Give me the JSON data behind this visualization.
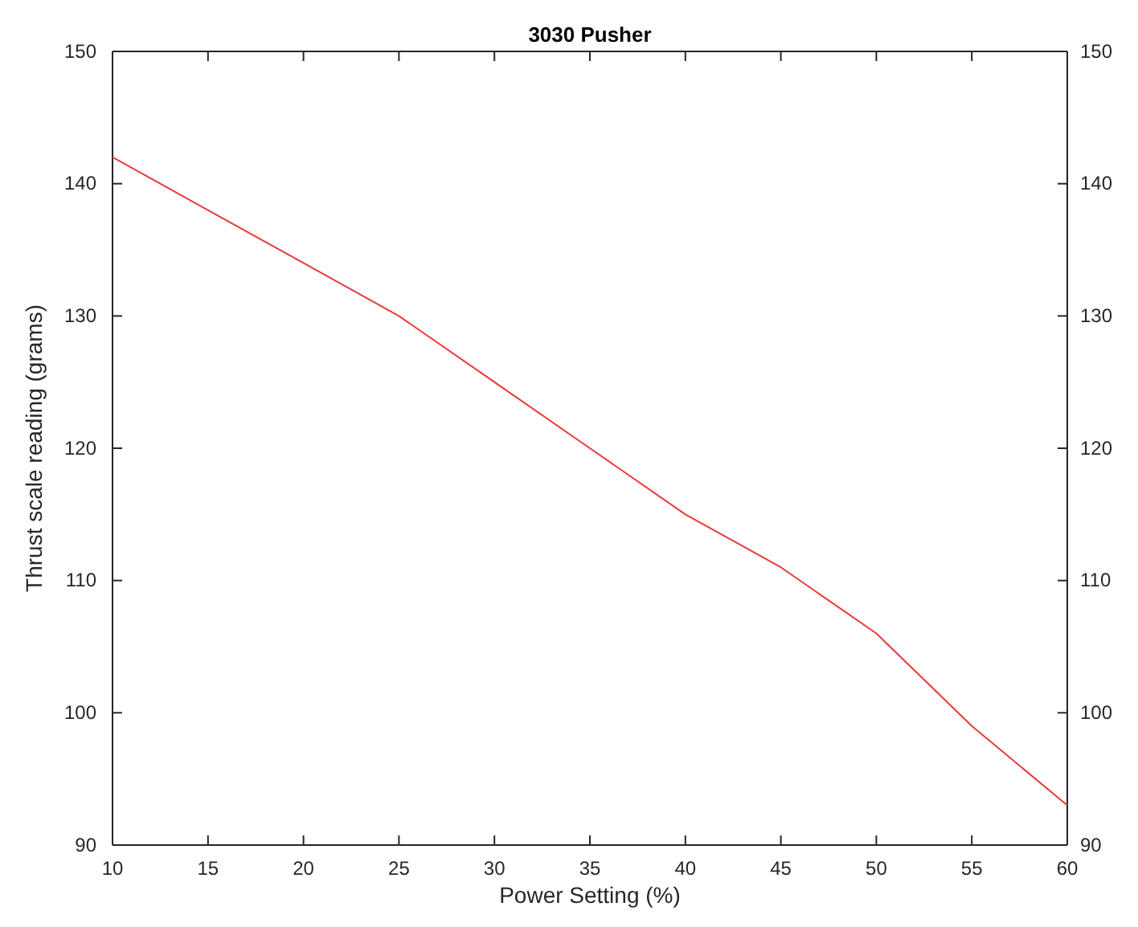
{
  "chart_data": {
    "type": "line",
    "title": "3030 Pusher",
    "xlabel": "Power Setting (%)",
    "ylabel": "Thrust scale reading (grams)",
    "x": [
      10,
      15,
      20,
      25,
      30,
      35,
      40,
      45,
      50,
      55,
      60
    ],
    "series": [
      {
        "color": "#e8393a",
        "values": [
          142,
          138,
          134,
          130,
          125,
          120,
          115,
          111,
          106,
          99,
          93
        ]
      }
    ],
    "xlim": [
      10,
      60
    ],
    "xticks": [
      10,
      15,
      20,
      25,
      30,
      35,
      40,
      45,
      50,
      55,
      60
    ],
    "ylim": [
      90,
      150
    ],
    "yticks": [
      90,
      100,
      110,
      120,
      130,
      140,
      150
    ],
    "y2lim": [
      90,
      150
    ],
    "y2ticks": [
      90,
      100,
      110,
      120,
      130,
      140,
      150
    ],
    "grid": false
  }
}
